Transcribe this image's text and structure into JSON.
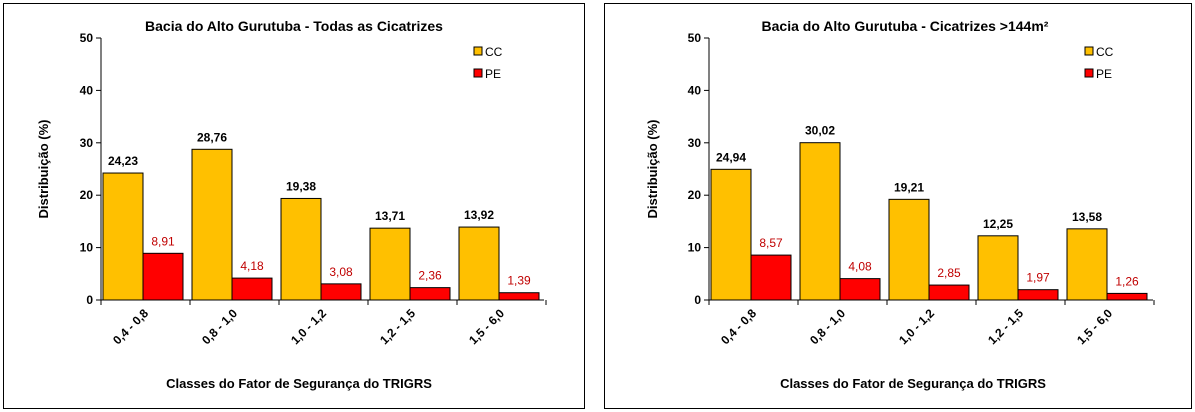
{
  "chart_data": [
    {
      "type": "bar",
      "title": "Bacia do Alto Gurutuba - Todas as Cicatrizes",
      "xlabel": "Classes do Fator de Segurança do TRIGRS",
      "ylabel": "Distribuição (%)",
      "ylim": [
        0,
        50
      ],
      "yticks": [
        "0",
        "10",
        "20",
        "30",
        "40",
        "50"
      ],
      "categories": [
        "0,4 - 0,8",
        "0,8 - 1,0",
        "1,0 - 1,2",
        "1,2 - 1,5",
        "1,5 - 6,0"
      ],
      "legend_position": "top-right",
      "grid": false,
      "series": [
        {
          "name": "CC",
          "color": "#ffc000",
          "values": [
            24.23,
            28.76,
            19.38,
            13.71,
            13.92
          ],
          "labels": [
            "24,23",
            "28,76",
            "19,38",
            "13,71",
            "13,92"
          ]
        },
        {
          "name": "PE",
          "color": "#ff0000",
          "values": [
            8.91,
            4.18,
            3.08,
            2.36,
            1.39
          ],
          "labels": [
            "8,91",
            "4,18",
            "3,08",
            "2,36",
            "1,39"
          ]
        }
      ]
    },
    {
      "type": "bar",
      "title": "Bacia do Alto Gurutuba - Cicatrizes >144m²",
      "xlabel": "Classes do Fator de Segurança do TRIGRS",
      "ylabel": "Distribuição (%)",
      "ylim": [
        0,
        50
      ],
      "yticks": [
        "0",
        "10",
        "20",
        "30",
        "40",
        "50"
      ],
      "categories": [
        "0,4 - 0,8",
        "0,8 - 1,0",
        "1,0 - 1,2",
        "1,2 - 1,5",
        "1,5 - 6,0"
      ],
      "legend_position": "top-right",
      "grid": false,
      "series": [
        {
          "name": "CC",
          "color": "#ffc000",
          "values": [
            24.94,
            30.02,
            19.21,
            12.25,
            13.58
          ],
          "labels": [
            "24,94",
            "30,02",
            "19,21",
            "12,25",
            "13,58"
          ]
        },
        {
          "name": "PE",
          "color": "#ff0000",
          "values": [
            8.57,
            4.08,
            2.85,
            1.97,
            1.26
          ],
          "labels": [
            "8,57",
            "4,08",
            "2,85",
            "1,97",
            "1,26"
          ]
        }
      ]
    }
  ]
}
